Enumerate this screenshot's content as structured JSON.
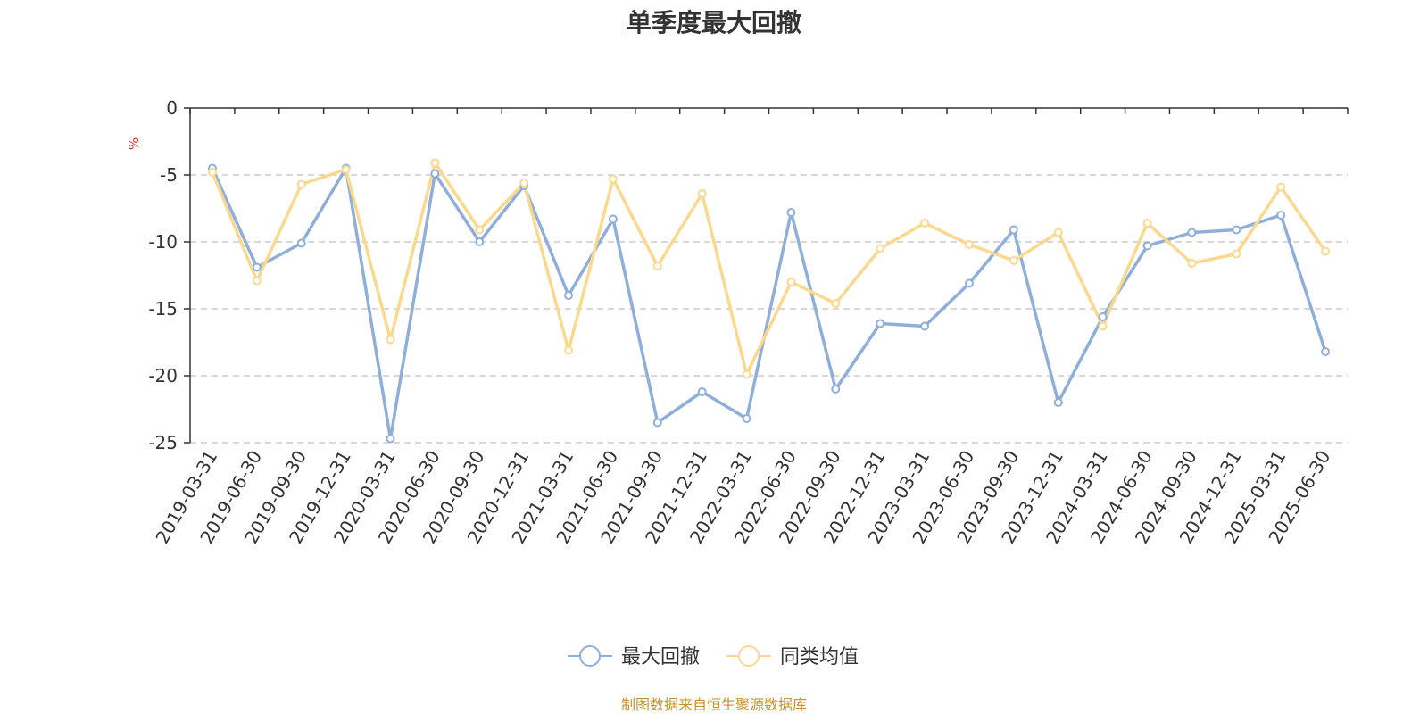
{
  "chart_data": {
    "type": "line",
    "title": "单季度最大回撤",
    "ylabel": "%",
    "xlabel": "",
    "ylim": [
      -25,
      0
    ],
    "y_ticks": [
      0,
      -5,
      -10,
      -15,
      -20,
      -25
    ],
    "grid": true,
    "legend_position": "bottom-center",
    "categories": [
      "2019-03-31",
      "2019-06-30",
      "2019-09-30",
      "2019-12-31",
      "2020-03-31",
      "2020-06-30",
      "2020-09-30",
      "2020-12-31",
      "2021-03-31",
      "2021-06-30",
      "2021-09-30",
      "2021-12-31",
      "2022-03-31",
      "2022-06-30",
      "2022-09-30",
      "2022-12-31",
      "2023-03-31",
      "2023-06-30",
      "2023-09-30",
      "2023-12-31",
      "2024-03-31",
      "2024-06-30",
      "2024-09-30",
      "2024-12-31",
      "2025-03-31",
      "2025-06-30"
    ],
    "series": [
      {
        "name": "最大回撤",
        "color": "#8fafda",
        "values": [
          -4.5,
          -11.9,
          -10.1,
          -4.5,
          -24.7,
          -4.9,
          -10.0,
          -5.8,
          -14.0,
          -8.3,
          -23.5,
          -21.2,
          -23.2,
          -7.8,
          -21.0,
          -16.1,
          -16.3,
          -13.1,
          -9.1,
          -22.0,
          -15.6,
          -10.3,
          -9.3,
          -9.1,
          -8.0,
          -18.2
        ]
      },
      {
        "name": "同类均值",
        "color": "#fad98f",
        "values": [
          -4.8,
          -12.9,
          -5.7,
          -4.6,
          -17.3,
          -4.1,
          -9.1,
          -5.6,
          -18.1,
          -5.3,
          -11.8,
          -6.4,
          -19.9,
          -13.0,
          -14.6,
          -10.5,
          -8.6,
          -10.2,
          -11.4,
          -9.3,
          -16.3,
          -8.6,
          -11.6,
          -10.9,
          -5.9,
          -10.7
        ]
      }
    ]
  },
  "footer": {
    "source_note": "制图数据来自恒生聚源数据库"
  }
}
